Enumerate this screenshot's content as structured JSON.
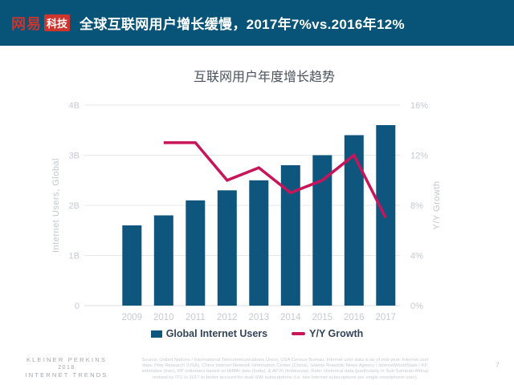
{
  "header": {
    "brand": "网易",
    "brand_sub": "科技",
    "title": "全球互联网用户增长缓慢，2017年7%vs.2016年12%"
  },
  "chart_data": {
    "type": "bar",
    "title": "互联网用户年度增长趋势",
    "categories": [
      "2009",
      "2010",
      "2011",
      "2012",
      "2013",
      "2014",
      "2015",
      "2016",
      "2017"
    ],
    "series": [
      {
        "name": "Global Internet Users",
        "type": "bar",
        "axis": "left",
        "unit": "billions",
        "color": "#0F567E",
        "values": [
          1.6,
          1.8,
          2.1,
          2.3,
          2.5,
          2.8,
          3.0,
          3.4,
          3.6
        ]
      },
      {
        "name": "Y/Y Growth",
        "type": "line",
        "axis": "right",
        "unit": "%",
        "color": "#C8155A",
        "values": [
          null,
          13,
          13,
          10,
          11,
          9,
          10,
          12,
          7
        ]
      }
    ],
    "left_axis": {
      "label": "Internet Users, Global",
      "ticks": [
        "0",
        "1B",
        "2B",
        "3B",
        "4B"
      ],
      "range": [
        0,
        4
      ]
    },
    "right_axis": {
      "label": "Y/Y Growth",
      "ticks": [
        "0%",
        "4%",
        "8%",
        "12%",
        "16%"
      ],
      "range": [
        0,
        16
      ]
    },
    "legend_position": "bottom",
    "grid": true
  },
  "footer": {
    "brand_lines": [
      "KLEINER PERKINS",
      "2018",
      "INTERNET TRENDS"
    ],
    "source_lines": [
      "Source: United Nations / International Telecommunications Union, USA Census Bureau. Internet user data is as of mid-year. Internet user",
      "data: Pew Research (USA), China Internet Network Information Center (China), Islamic Republic News Agency / InternetWorldStats / KP",
      "estimates (Iran), KP estimates based on IAMAI data (India), & APJII (Indonesia).  Note: Historical data (particularly in Sub-Saharan Africa)",
      "revised by ITU in 2017 to better account for dual-SIM subscriptions (i.e. two Internet subscriptions per single smartphone user)."
    ],
    "page_number": "7"
  },
  "colors": {
    "header_bg": "#075478",
    "logo_red": "#CE352C",
    "bar": "#0F567E",
    "line": "#C8155A",
    "chart_title": "#48525D",
    "axis_text": "#C5CAD2",
    "legend_text": "#344459"
  }
}
